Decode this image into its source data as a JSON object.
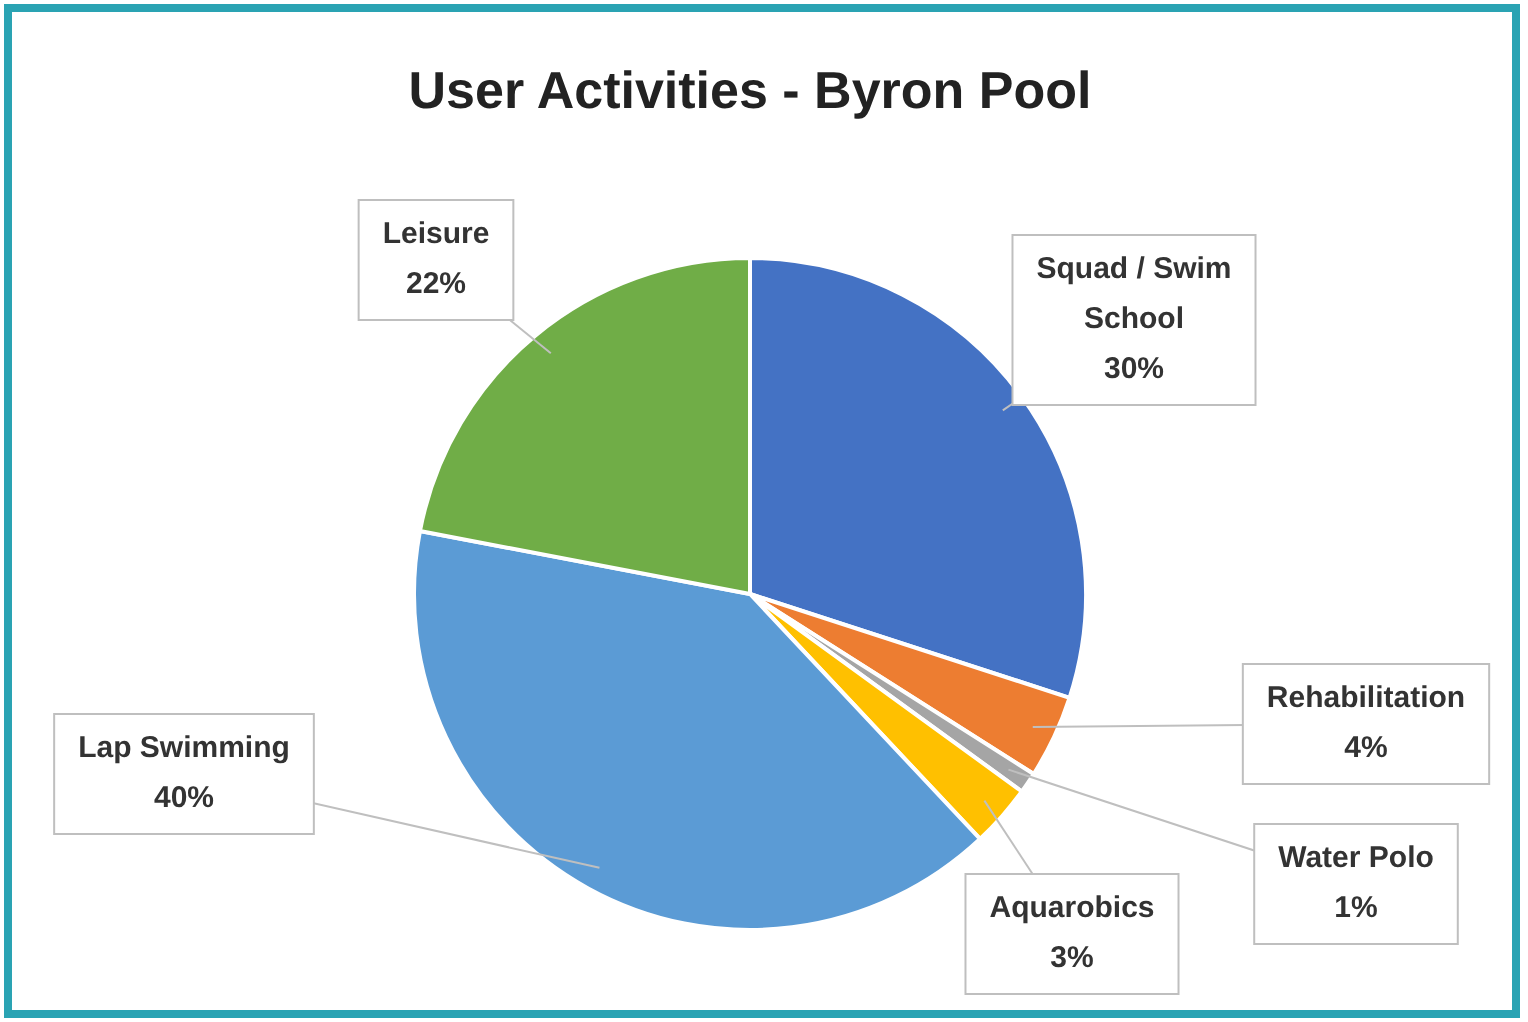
{
  "chart_data": {
    "type": "pie",
    "title": "User Activities - Byron Pool",
    "categories": [
      "Squad / Swim School",
      "Rehabilitation",
      "Water Polo",
      "Aquarobics",
      "Lap Swimming",
      "Leisure"
    ],
    "values": [
      30,
      4,
      1,
      3,
      40,
      22
    ],
    "colors": [
      "#4472c4",
      "#ed7d31",
      "#a5a5a5",
      "#ffc000",
      "#5b9bd5",
      "#70ad47"
    ],
    "value_labels": [
      "30%",
      "4%",
      "1%",
      "3%",
      "40%",
      "22%"
    ],
    "legend": false
  }
}
